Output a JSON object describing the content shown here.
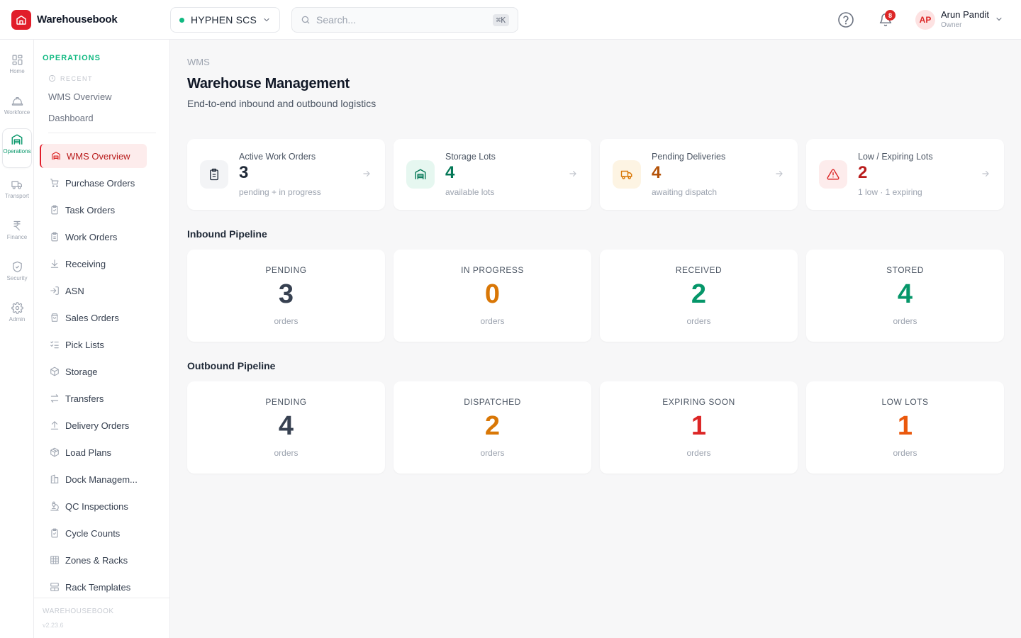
{
  "app": {
    "name": "Warehousebook"
  },
  "org": {
    "name": "HYPHEN SCS",
    "status_color": "#10b981"
  },
  "search": {
    "placeholder": "Search...",
    "shortcut": "⌘K"
  },
  "notifications": {
    "count": "8"
  },
  "user": {
    "initials": "AP",
    "name": "Arun Pandit",
    "role": "Owner"
  },
  "rail": [
    {
      "label": "Home",
      "icon": "grid-icon"
    },
    {
      "label": "Workforce",
      "icon": "hard-hat-icon"
    },
    {
      "label": "Operations",
      "icon": "warehouse-icon",
      "active": true
    },
    {
      "label": "Transport",
      "icon": "truck-icon"
    },
    {
      "label": "Finance",
      "icon": "rupee-icon"
    },
    {
      "label": "Security",
      "icon": "shield-icon"
    },
    {
      "label": "Admin",
      "icon": "gear-icon"
    }
  ],
  "sidebar": {
    "section": "OPERATIONS",
    "recent_label": "RECENT",
    "recent": [
      "WMS Overview",
      "Dashboard"
    ],
    "items": [
      {
        "label": "WMS Overview",
        "icon": "warehouse-icon",
        "active": true
      },
      {
        "label": "Purchase Orders",
        "icon": "cart-icon"
      },
      {
        "label": "Task Orders",
        "icon": "clipboard-check-icon"
      },
      {
        "label": "Work Orders",
        "icon": "clipboard-icon"
      },
      {
        "label": "Receiving",
        "icon": "arrow-down-icon"
      },
      {
        "label": "ASN",
        "icon": "login-icon"
      },
      {
        "label": "Sales Orders",
        "icon": "shopping-bag-icon"
      },
      {
        "label": "Pick Lists",
        "icon": "list-check-icon"
      },
      {
        "label": "Storage",
        "icon": "box-icon"
      },
      {
        "label": "Transfers",
        "icon": "transfer-icon"
      },
      {
        "label": "Delivery Orders",
        "icon": "arrow-up-icon"
      },
      {
        "label": "Load Plans",
        "icon": "package-icon"
      },
      {
        "label": "Dock Managem...",
        "icon": "dock-icon"
      },
      {
        "label": "QC Inspections",
        "icon": "microscope-icon"
      },
      {
        "label": "Cycle Counts",
        "icon": "clipboard-check-icon"
      },
      {
        "label": "Zones & Racks",
        "icon": "grid-3-icon"
      },
      {
        "label": "Rack Templates",
        "icon": "layout-icon"
      }
    ],
    "footer_brand": "WAREHOUSEBOOK",
    "footer_version": "v2.23.6"
  },
  "page": {
    "breadcrumb": "WMS",
    "title": "Warehouse Management",
    "subtitle": "End-to-end inbound and outbound logistics"
  },
  "stats": [
    {
      "label": "Active Work Orders",
      "value": "3",
      "caption": "pending + in progress",
      "icon": "clipboard-icon",
      "color": "#1f2937",
      "tint": "#f3f4f6"
    },
    {
      "label": "Storage Lots",
      "value": "4",
      "caption": "available lots",
      "icon": "warehouse-icon",
      "color": "#047857",
      "tint": "#e6f7f0"
    },
    {
      "label": "Pending Deliveries",
      "value": "4",
      "caption": "awaiting dispatch",
      "icon": "truck-icon",
      "color": "#b45309",
      "tint": "#fdf4e3"
    },
    {
      "label": "Low / Expiring Lots",
      "value": "2",
      "caption": "1 low · 1 expiring",
      "icon": "alert-triangle-icon",
      "color": "#b91c1c",
      "tint": "#fdecec"
    }
  ],
  "inbound": {
    "title": "Inbound Pipeline",
    "cards": [
      {
        "label": "PENDING",
        "value": "3",
        "unit": "orders",
        "color": "#374151"
      },
      {
        "label": "IN PROGRESS",
        "value": "0",
        "unit": "orders",
        "color": "#d97706"
      },
      {
        "label": "RECEIVED",
        "value": "2",
        "unit": "orders",
        "color": "#059669"
      },
      {
        "label": "STORED",
        "value": "4",
        "unit": "orders",
        "color": "#059669"
      }
    ]
  },
  "outbound": {
    "title": "Outbound Pipeline",
    "cards": [
      {
        "label": "PENDING",
        "value": "4",
        "unit": "orders",
        "color": "#374151"
      },
      {
        "label": "DISPATCHED",
        "value": "2",
        "unit": "orders",
        "color": "#d97706"
      },
      {
        "label": "EXPIRING SOON",
        "value": "1",
        "unit": "orders",
        "color": "#dc2626"
      },
      {
        "label": "LOW LOTS",
        "value": "1",
        "unit": "orders",
        "color": "#ea580c"
      }
    ]
  }
}
